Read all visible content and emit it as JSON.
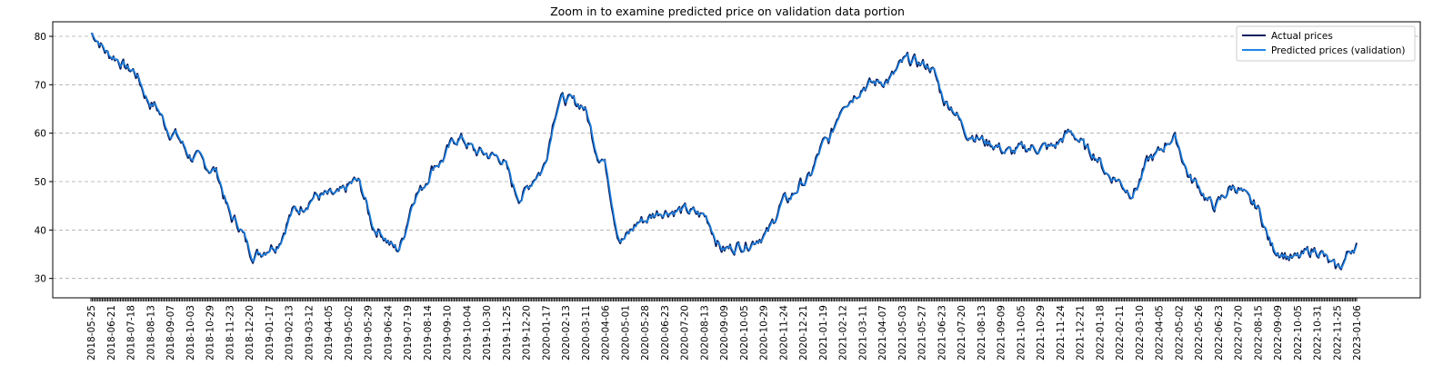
{
  "chart_data": {
    "type": "line",
    "title": "Zoom in to examine predicted price on validation data portion",
    "xlabel": "",
    "ylabel": "",
    "ylim": [
      26,
      83
    ],
    "yticks": [
      30,
      40,
      50,
      60,
      70,
      80
    ],
    "grid": "y-dashed",
    "legend_position": "top-right",
    "x_tick_labels": [
      "2018-05-25",
      "2018-06-21",
      "2018-07-18",
      "2018-08-13",
      "2018-09-07",
      "2018-10-03",
      "2018-10-29",
      "2018-11-23",
      "2018-12-20",
      "2019-01-17",
      "2019-02-13",
      "2019-03-12",
      "2019-04-05",
      "2019-05-02",
      "2019-05-29",
      "2019-06-24",
      "2019-07-19",
      "2019-08-14",
      "2019-09-10",
      "2019-10-04",
      "2019-10-30",
      "2019-11-25",
      "2019-12-20",
      "2020-01-17",
      "2020-02-13",
      "2020-03-11",
      "2020-04-06",
      "2020-05-01",
      "2020-05-28",
      "2020-06-23",
      "2020-07-20",
      "2020-08-13",
      "2020-09-09",
      "2020-10-05",
      "2020-10-29",
      "2020-11-24",
      "2020-12-21",
      "2021-01-19",
      "2021-02-12",
      "2021-03-11",
      "2021-04-07",
      "2021-05-03",
      "2021-05-27",
      "2021-06-23",
      "2021-07-20",
      "2021-08-13",
      "2021-09-09",
      "2021-10-05",
      "2021-10-29",
      "2021-11-24",
      "2021-12-21",
      "2022-01-18",
      "2022-02-11",
      "2022-03-10",
      "2022-04-05",
      "2022-05-02",
      "2022-05-26",
      "2022-06-23",
      "2022-07-20",
      "2022-08-15",
      "2022-09-09",
      "2022-10-05",
      "2022-10-31",
      "2022-11-25",
      "2023-01-06"
    ],
    "anchor_values": [
      80.5,
      76,
      73,
      66,
      60,
      55,
      52.5,
      42,
      35,
      37,
      44,
      47,
      47,
      50,
      40,
      36,
      48,
      54,
      59,
      56,
      55,
      47,
      52,
      67,
      66,
      55,
      38,
      42,
      44,
      44,
      43,
      36,
      37,
      39,
      46,
      50,
      58,
      67,
      70,
      71,
      75,
      74,
      66,
      60,
      58,
      56,
      57,
      57,
      60,
      56,
      51,
      48,
      55,
      59,
      50,
      45,
      49,
      45,
      36,
      34,
      36,
      32,
      37
    ],
    "series": [
      {
        "name": "Actual prices",
        "color": "#0b1f5c"
      },
      {
        "name": "Predicted prices (validation)",
        "color": "#1f86e6"
      }
    ]
  }
}
